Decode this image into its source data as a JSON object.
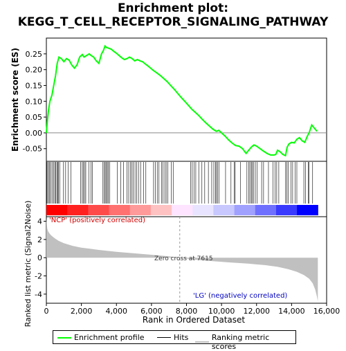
{
  "chart_data": {
    "type": "line",
    "title_line1": "Enrichment plot:",
    "title_line2": "KEGG_T_CELL_RECEPTOR_SIGNALING_PATHWAY",
    "es_panel": {
      "ylabel": "Enrichment score (ES)",
      "ylim": [
        -0.09,
        0.3
      ],
      "yticks": [
        -0.05,
        0.0,
        0.05,
        0.1,
        0.15,
        0.2,
        0.25
      ],
      "ytick_labels": [
        "-0.05",
        "0.00",
        "0.05",
        "0.10",
        "0.15",
        "0.20",
        "0.25"
      ],
      "series": [
        {
          "name": "Enrichment profile",
          "color": "#00ff00",
          "x": [
            0,
            60,
            120,
            200,
            320,
            420,
            520,
            620,
            720,
            860,
            1000,
            1150,
            1300,
            1450,
            1600,
            1750,
            1900,
            2050,
            2150,
            2300,
            2450,
            2550,
            2700,
            2850,
            3000,
            3150,
            3250,
            3350,
            3450,
            3550,
            3700,
            3850,
            4000,
            4150,
            4300,
            4450,
            4600,
            4750,
            4900,
            5050,
            5200,
            5350,
            5500,
            5650,
            5800,
            5950,
            6100,
            6300,
            6500,
            6700,
            6900,
            7100,
            7300,
            7500,
            7700,
            7900,
            8100,
            8300,
            8500,
            8700,
            8900,
            9100,
            9300,
            9500,
            9700,
            9850,
            10000,
            10200,
            10400,
            10600,
            10800,
            11000,
            11200,
            11400,
            11550,
            11700,
            11850,
            12000,
            12200,
            12400,
            12600,
            12800,
            13000,
            13100,
            13200,
            13350,
            13500,
            13650,
            13750,
            13850,
            14000,
            14150,
            14300,
            14450,
            14600,
            14750,
            14900,
            15000,
            15150,
            15300,
            15450
          ],
          "y": [
            0.0,
            0.04,
            0.07,
            0.1,
            0.12,
            0.15,
            0.18,
            0.22,
            0.24,
            0.235,
            0.225,
            0.235,
            0.23,
            0.215,
            0.205,
            0.215,
            0.24,
            0.248,
            0.24,
            0.245,
            0.25,
            0.245,
            0.24,
            0.228,
            0.22,
            0.25,
            0.26,
            0.275,
            0.27,
            0.268,
            0.265,
            0.258,
            0.252,
            0.245,
            0.238,
            0.232,
            0.235,
            0.24,
            0.235,
            0.228,
            0.232,
            0.228,
            0.225,
            0.218,
            0.212,
            0.205,
            0.198,
            0.19,
            0.182,
            0.172,
            0.162,
            0.15,
            0.138,
            0.125,
            0.112,
            0.1,
            0.088,
            0.075,
            0.065,
            0.055,
            0.043,
            0.032,
            0.022,
            0.012,
            0.005,
            0.008,
            0.0,
            -0.01,
            -0.022,
            -0.032,
            -0.04,
            -0.042,
            -0.05,
            -0.065,
            -0.055,
            -0.045,
            -0.038,
            -0.042,
            -0.05,
            -0.058,
            -0.065,
            -0.07,
            -0.07,
            -0.068,
            -0.055,
            -0.06,
            -0.068,
            -0.072,
            -0.045,
            -0.035,
            -0.03,
            -0.032,
            -0.02,
            -0.015,
            -0.025,
            -0.03,
            -0.01,
            0.0,
            0.025,
            0.015,
            0.005
          ]
        }
      ]
    },
    "hits_panel": {
      "series_name": "Hits",
      "color": "#000000",
      "positions": [
        20,
        70,
        130,
        190,
        260,
        330,
        420,
        480,
        540,
        600,
        650,
        700,
        760,
        980,
        1100,
        1250,
        1400,
        1950,
        2050,
        2120,
        2180,
        2250,
        2420,
        2540,
        2630,
        3230,
        3300,
        3360,
        3420,
        3480,
        3540,
        3620,
        4050,
        4250,
        4400,
        4600,
        4700,
        4800,
        4880,
        4960,
        5060,
        5160,
        5260,
        5380,
        5550,
        5680,
        6120,
        6220,
        6330,
        6430,
        6580,
        6660,
        6760,
        6840,
        6940,
        7140,
        7240,
        8230,
        8330,
        8430,
        8530,
        8700,
        8880,
        9040,
        9250,
        9440,
        9560,
        9650,
        9710,
        9780,
        9850,
        10230,
        10540,
        10720,
        10780,
        11090,
        11450,
        11550,
        11620,
        11700,
        11760,
        11840,
        11930,
        12040,
        12290,
        12400,
        12680,
        12940,
        13060,
        13150,
        13270,
        13660,
        13730,
        13800,
        13970,
        14060,
        14200,
        14300,
        14700,
        14800,
        14950,
        15000,
        15200
      ]
    },
    "ranked_panel": {
      "ylabel": "Ranked list metric (Signal2Noise)",
      "series_name": "Ranking metric scores",
      "color": "#c0c0c0",
      "ylim": [
        -5,
        4.5
      ],
      "yticks": [
        -4,
        -2,
        0,
        2,
        4
      ],
      "ytick_labels": [
        "-4",
        "-2",
        "0",
        "2",
        "4"
      ],
      "x": [
        0,
        50,
        100,
        200,
        300,
        500,
        700,
        1000,
        1500,
        2000,
        3000,
        4000,
        5000,
        6000,
        7000,
        7615,
        8500,
        9500,
        10500,
        11500,
        12500,
        13200,
        13800,
        14300,
        14700,
        15000,
        15200,
        15350,
        15450,
        15500
      ],
      "y": [
        4.3,
        3.2,
        2.9,
        2.6,
        2.4,
        2.1,
        1.85,
        1.6,
        1.3,
        1.1,
        0.85,
        0.65,
        0.48,
        0.32,
        0.15,
        0.0,
        -0.22,
        -0.38,
        -0.52,
        -0.65,
        -0.82,
        -1.0,
        -1.25,
        -1.55,
        -1.9,
        -2.3,
        -2.8,
        -3.5,
        -4.3,
        -4.8
      ]
    },
    "heatmap_bar": {
      "colors": [
        "#ff0000",
        "#ff2020",
        "#ff4a4a",
        "#ff7070",
        "#ff9a9a",
        "#ffc2c2",
        "#ffe4ff",
        "#e8e4ff",
        "#c8c8ff",
        "#a0a0ff",
        "#7070ff",
        "#3a3aff",
        "#0000ff"
      ]
    },
    "annotations": {
      "positive_label": "'NCP' (positively correlated)",
      "negative_label": "'LG' (negatively correlated)",
      "zero_cross_label": "Zero cross at 7615",
      "zero_cross_x": 7615
    },
    "x_axis": {
      "label": "Rank in Ordered Dataset",
      "xlim": [
        0,
        16000
      ],
      "ticks": [
        0,
        2000,
        4000,
        6000,
        8000,
        10000,
        12000,
        14000,
        16000
      ],
      "tick_labels": [
        "0",
        "2,000",
        "4,000",
        "6,000",
        "8,000",
        "10,000",
        "12,000",
        "14,000",
        "16,000"
      ]
    },
    "legend": {
      "entries": [
        {
          "label": "Enrichment profile",
          "color": "#00ff00"
        },
        {
          "label": "Hits",
          "color": "#000000"
        },
        {
          "label": "Ranking metric scores",
          "color": "#c0c0c0"
        }
      ]
    }
  }
}
